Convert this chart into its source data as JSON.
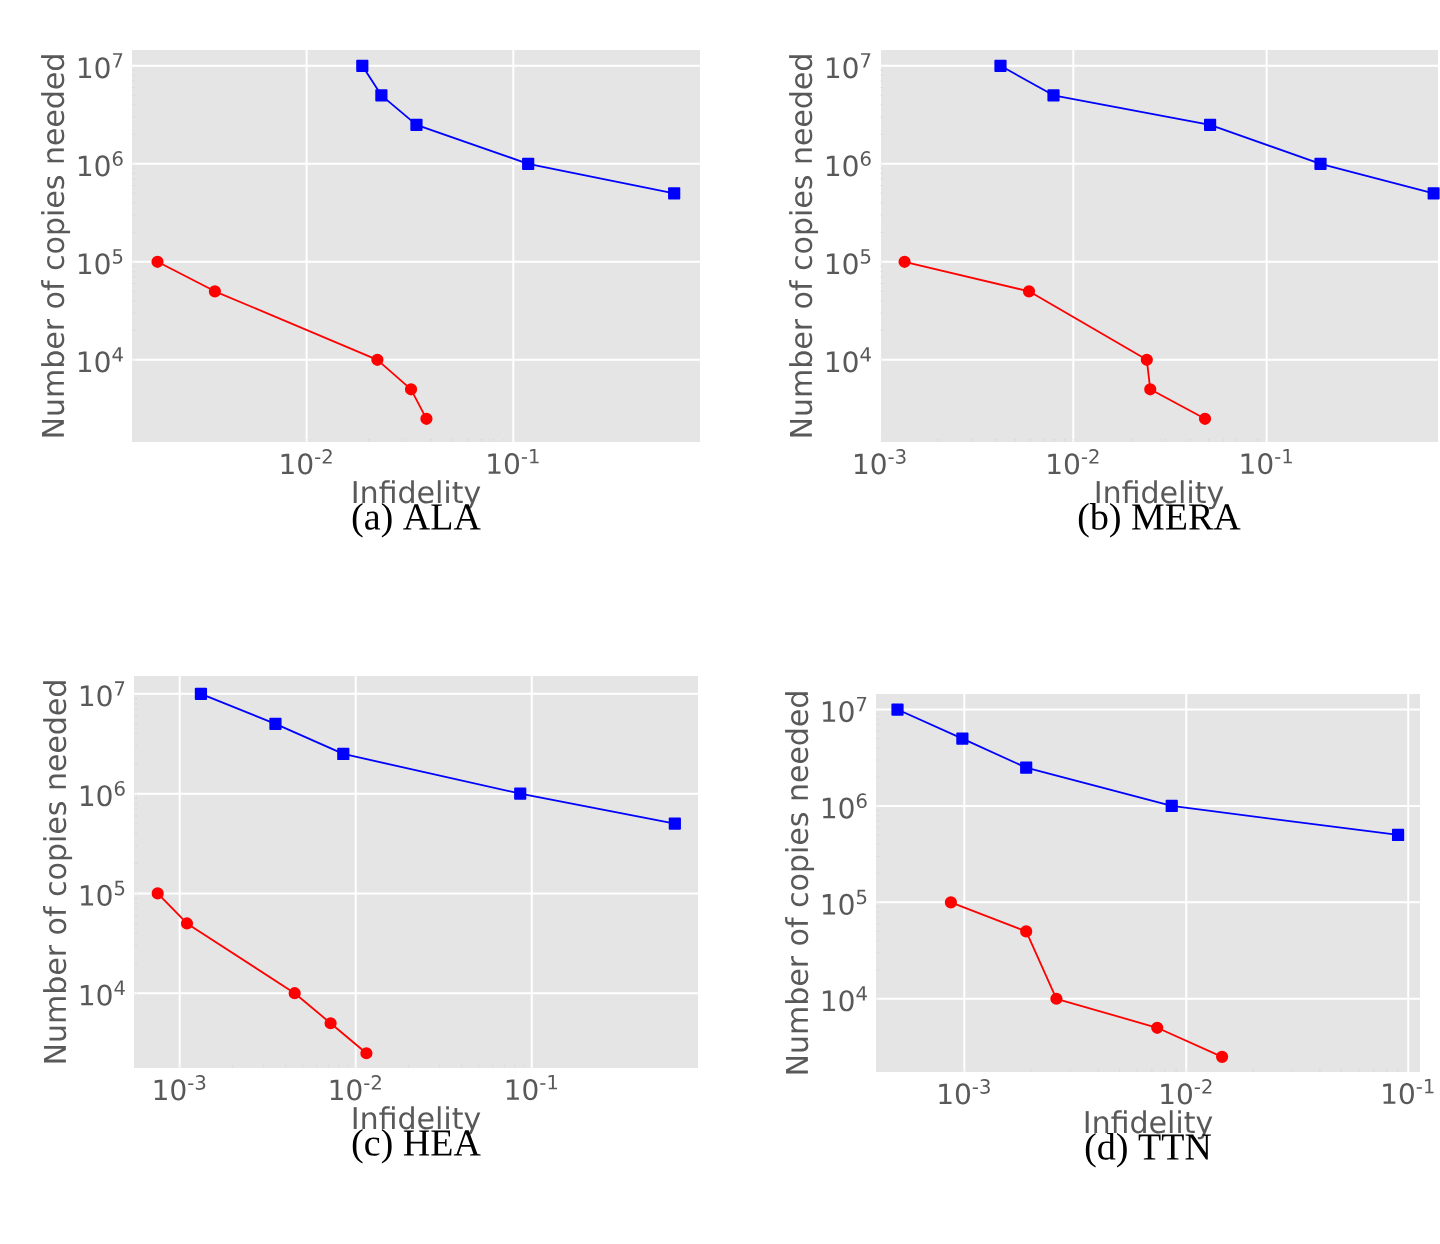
{
  "chart_data": [
    {
      "type": "line",
      "title": "(a) ALA",
      "xlabel": "Infidelity",
      "ylabel": "Number of copies needed",
      "log": "xy",
      "grid": true,
      "line_style": "solid",
      "xlim": [
        0.00143,
        0.8
      ],
      "ylim": [
        1450,
        14500000
      ],
      "xticks": [
        {
          "value": 0.01,
          "label": "10$^{-2}$"
        },
        {
          "value": 0.1,
          "label": "10$^{-1}$"
        }
      ],
      "yticks": [
        {
          "value": 10000,
          "label": "10$^{4}$"
        },
        {
          "value": 100000,
          "label": "10$^{5}$"
        },
        {
          "value": 1000000,
          "label": "10$^{6}$"
        },
        {
          "value": 10000000,
          "label": "10$^{7}$"
        }
      ],
      "series": [
        {
          "color": "#0000ff",
          "marker": "square",
          "x": [
            0.0186,
            0.023,
            0.034,
            0.118,
            0.6
          ],
          "values": [
            10000000,
            5000000,
            2500000,
            1000000,
            500000
          ]
        },
        {
          "color": "#ff0000",
          "marker": "circle",
          "x": [
            0.0019,
            0.0036,
            0.022,
            0.032,
            0.038
          ],
          "values": [
            100000,
            50000,
            10000,
            5000,
            2500
          ]
        }
      ]
    },
    {
      "type": "line",
      "title": "(b) MERA",
      "xlabel": "Infidelity",
      "ylabel": "Number of copies needed",
      "log": "xy",
      "grid": true,
      "line_style": "solid",
      "xlim": [
        0.001,
        0.77
      ],
      "ylim": [
        1450,
        14500000
      ],
      "xticks": [
        {
          "value": 0.001,
          "label": "10$^{-3}$"
        },
        {
          "value": 0.01,
          "label": "10$^{-2}$"
        },
        {
          "value": 0.1,
          "label": "10$^{-1}$"
        }
      ],
      "yticks": [
        {
          "value": 10000,
          "label": "10$^{4}$"
        },
        {
          "value": 100000,
          "label": "10$^{5}$"
        },
        {
          "value": 1000000,
          "label": "10$^{6}$"
        },
        {
          "value": 10000000,
          "label": "10$^{7}$"
        }
      ],
      "series": [
        {
          "color": "#0000ff",
          "marker": "square",
          "x": [
            0.0042,
            0.0079,
            0.051,
            0.19,
            0.73
          ],
          "values": [
            10000000,
            5000000,
            2500000,
            1000000,
            500000
          ]
        },
        {
          "color": "#ff0000",
          "marker": "circle",
          "x": [
            0.00134,
            0.0059,
            0.024,
            0.025,
            0.048
          ],
          "values": [
            100000,
            50000,
            10000,
            5000,
            2500
          ]
        }
      ]
    },
    {
      "type": "line",
      "title": "(c) HEA",
      "xlabel": "Infidelity",
      "ylabel": "Number of copies needed",
      "log": "xy",
      "grid": true,
      "line_style": "solid",
      "xlim": [
        0.00055,
        0.88
      ],
      "ylim": [
        1780,
        15100000
      ],
      "xticks": [
        {
          "value": 0.001,
          "label": "10$^{-3}$"
        },
        {
          "value": 0.01,
          "label": "10$^{-2}$"
        },
        {
          "value": 0.1,
          "label": "10$^{-1}$"
        }
      ],
      "yticks": [
        {
          "value": 10000,
          "label": "10$^{4}$"
        },
        {
          "value": 100000,
          "label": "10$^{5}$"
        },
        {
          "value": 1000000,
          "label": "10$^{6}$"
        },
        {
          "value": 10000000,
          "label": "10$^{7}$"
        }
      ],
      "series": [
        {
          "color": "#0000ff",
          "marker": "square",
          "x": [
            0.00132,
            0.0035,
            0.0085,
            0.086,
            0.65
          ],
          "values": [
            10000000,
            5000000,
            2500000,
            1000000,
            500000
          ]
        },
        {
          "color": "#ff0000",
          "marker": "circle",
          "x": [
            0.00075,
            0.0011,
            0.0045,
            0.0072,
            0.0115
          ],
          "values": [
            100000,
            50000,
            10000,
            5000,
            2500
          ]
        }
      ]
    },
    {
      "type": "line",
      "title": "(d) TTN",
      "xlabel": "Infidelity",
      "ylabel": "Number of copies needed",
      "log": "xy",
      "grid": true,
      "line_style": "solid",
      "xlim": [
        0.0004,
        0.113
      ],
      "ylim": [
        1740,
        14500000
      ],
      "xticks": [
        {
          "value": 0.001,
          "label": "10$^{-3}$"
        },
        {
          "value": 0.01,
          "label": "10$^{-2}$"
        },
        {
          "value": 0.1,
          "label": "10$^{-1}$"
        }
      ],
      "yticks": [
        {
          "value": 10000,
          "label": "10$^{4}$"
        },
        {
          "value": 100000,
          "label": "10$^{5}$"
        },
        {
          "value": 1000000,
          "label": "10$^{6}$"
        },
        {
          "value": 10000000,
          "label": "10$^{7}$"
        }
      ],
      "series": [
        {
          "color": "#0000ff",
          "marker": "square",
          "x": [
            0.0005,
            0.00098,
            0.0019,
            0.0086,
            0.09
          ],
          "values": [
            10000000,
            5000000,
            2500000,
            1000000,
            500000
          ]
        },
        {
          "color": "#ff0000",
          "marker": "circle",
          "x": [
            0.00087,
            0.0019,
            0.0026,
            0.0074,
            0.0145
          ],
          "values": [
            100000,
            50000,
            10000,
            5000,
            2500
          ]
        }
      ]
    }
  ]
}
